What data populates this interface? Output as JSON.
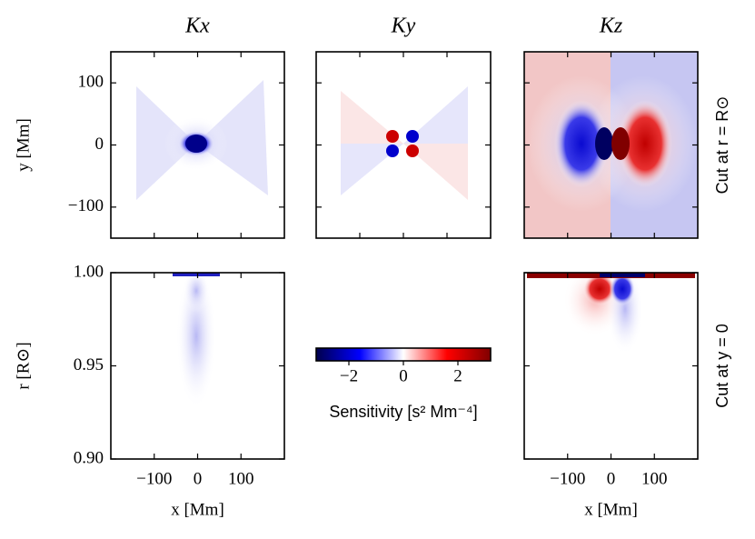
{
  "chart_data": [
    {
      "type": "heatmap",
      "title": "Kx",
      "ylabel": "y [Mm]",
      "xlim": [
        -200,
        200
      ],
      "ylim": [
        -150,
        150
      ],
      "xticks": [
        -100,
        0,
        100
      ],
      "yticks": [
        {
          "value": -100,
          "label": "−100"
        },
        0,
        100
      ],
      "show_xtick_labels": false,
      "show_ytick_labels": true
    },
    {
      "type": "heatmap",
      "title": "Ky",
      "xlim": [
        -200,
        200
      ],
      "ylim": [
        -150,
        150
      ],
      "xticks": [
        -100,
        0,
        100
      ],
      "yticks": [
        -100,
        0,
        100
      ],
      "show_xtick_labels": false,
      "show_ytick_labels": false
    },
    {
      "type": "heatmap",
      "title": "Kz",
      "side_label": "Cut at r = R⊙",
      "xlim": [
        -200,
        200
      ],
      "ylim": [
        -150,
        150
      ],
      "xticks": [
        -100,
        0,
        100
      ],
      "yticks": [
        -100,
        0,
        100
      ],
      "show_xtick_labels": false,
      "show_ytick_labels": false
    },
    {
      "type": "heatmap",
      "xlabel": "x [Mm]",
      "ylabel": "r [R⊙]",
      "xlim": [
        -200,
        200
      ],
      "ylim": [
        0.9,
        1.0
      ],
      "xticks": [
        {
          "value": -100,
          "label": "−100"
        },
        0,
        100
      ],
      "yticks": [
        {
          "value": 0.9,
          "label": "0.90"
        },
        0.95,
        {
          "value": 1.0,
          "label": "1.00"
        }
      ],
      "show_xtick_labels": true,
      "show_ytick_labels": true
    },
    {
      "type": "heatmap",
      "xlabel": "x [Mm]",
      "side_label": "Cut at y = 0",
      "xlim": [
        -200,
        200
      ],
      "ylim": [
        0.9,
        1.0
      ],
      "xticks": [
        {
          "value": -100,
          "label": "−100"
        },
        0,
        100
      ],
      "yticks": [
        0.9,
        0.95,
        1.0
      ],
      "show_xtick_labels": true,
      "show_ytick_labels": false
    },
    {
      "type": "colorbar",
      "xlabel": "Sensitivity [s² Mm⁻⁴]",
      "xlim": [
        -3.2,
        3.2
      ],
      "xticks": [
        {
          "value": -2,
          "label": "−2"
        },
        0,
        2
      ],
      "colormap": "seismic"
    }
  ]
}
